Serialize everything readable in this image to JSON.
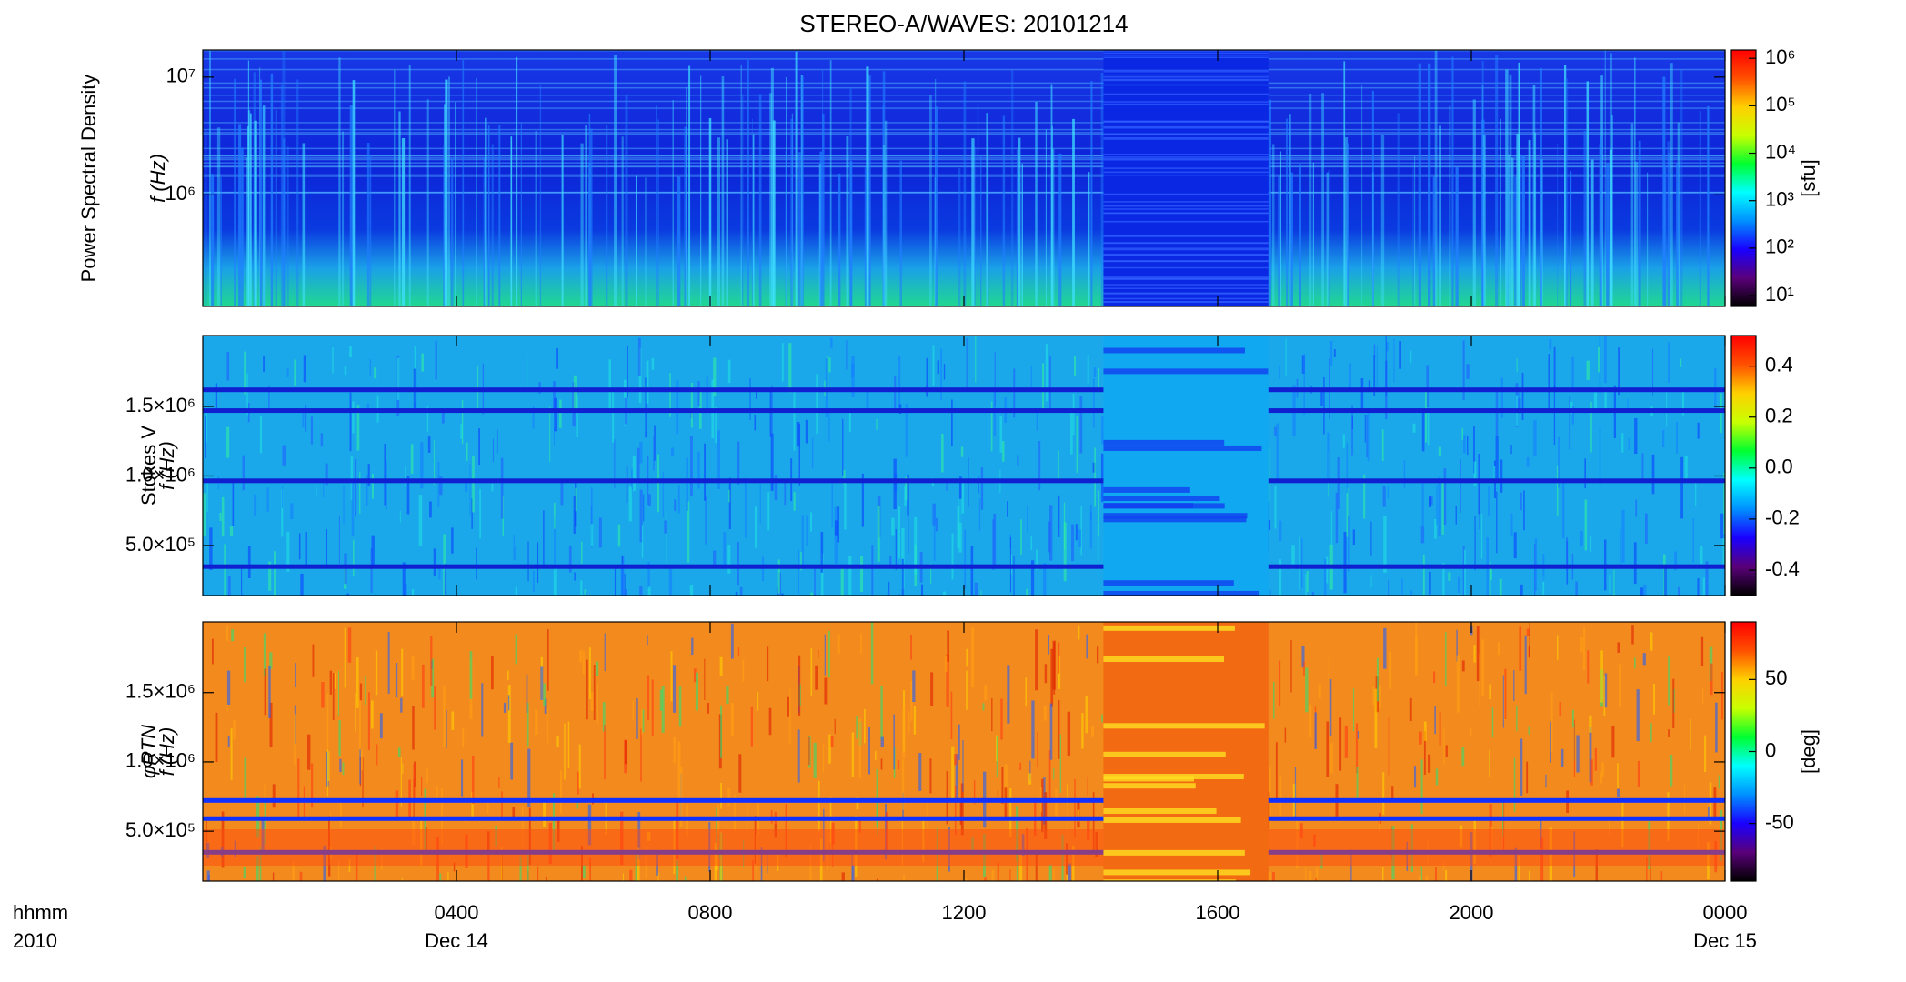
{
  "chart_data": [
    {
      "type": "spectrogram",
      "title": "STEREO-A/WAVES: 20101214",
      "ylabel": [
        "Power Spectral Density",
        "f (Hz)"
      ],
      "ylog": true,
      "ylim": [
        113000,
        17000000
      ],
      "yticks": [
        {
          "value": 1000000,
          "label": "10⁶"
        },
        {
          "value": 10000000,
          "label": "10⁷"
        }
      ],
      "xlim": [
        0,
        24
      ],
      "xticks": [
        4,
        8,
        12,
        16,
        20,
        24
      ],
      "gap": [
        14.2,
        16.8
      ],
      "clog": true,
      "clim": [
        5.9,
        1500000
      ],
      "cticks": [
        {
          "value": 10,
          "label": "10¹"
        },
        {
          "value": 100,
          "label": "10²"
        },
        {
          "value": 1000,
          "label": "10³"
        },
        {
          "value": 10000,
          "label": "10⁴"
        },
        {
          "value": 100000,
          "label": "10⁵"
        },
        {
          "value": 1000000,
          "label": "10⁶"
        }
      ],
      "cunit": "[sfu]",
      "colormap": [
        "#000000",
        "#5a007a",
        "#1a00ff",
        "#0090ff",
        "#00ffff",
        "#00ff30",
        "#c8ff00",
        "#ffd000",
        "#ff5000",
        "#ff0000"
      ]
    },
    {
      "type": "spectrogram",
      "ylabel": [
        "Stokes V",
        "f (Hz)"
      ],
      "ylog": false,
      "ylim": [
        140000,
        2010000
      ],
      "yticks": [
        {
          "value": 500000,
          "label": "5.0×10⁵"
        },
        {
          "value": 1000000,
          "label": "1.0×10⁶"
        },
        {
          "value": 1500000,
          "label": "1.5×10⁶"
        }
      ],
      "xlim": [
        0,
        24
      ],
      "xticks": [
        4,
        8,
        12,
        16,
        20,
        24
      ],
      "gap": [
        14.2,
        16.8
      ],
      "clog": false,
      "clim": [
        -0.5,
        0.52
      ],
      "cticks": [
        -0.4,
        -0.2,
        {
          "value": 0,
          "label": "0.0"
        },
        0.2,
        0.4
      ],
      "colormap": [
        "#000000",
        "#5a007a",
        "#1a00ff",
        "#0090ff",
        "#00ffff",
        "#00ff30",
        "#c8ff00",
        "#ffd000",
        "#ff5000",
        "#ff0000"
      ]
    },
    {
      "type": "spectrogram",
      "ylabel": [
        "φRTN",
        "f (Hz)"
      ],
      "ylog": false,
      "ylim": [
        140000,
        2010000
      ],
      "yticks": [
        {
          "value": 500000,
          "label": "5.0×10⁵"
        },
        {
          "value": 1000000,
          "label": "1.0×10⁶"
        },
        {
          "value": 1500000,
          "label": "1.5×10⁶"
        }
      ],
      "xlim": [
        0,
        24
      ],
      "xticks": [
        {
          "value": 4,
          "label": "0400"
        },
        {
          "value": 8,
          "label": "0800"
        },
        {
          "value": 12,
          "label": "1200"
        },
        {
          "value": 16,
          "label": "1600"
        },
        {
          "value": 20,
          "label": "2000"
        },
        {
          "value": 24,
          "label": "0000"
        }
      ],
      "xdates": [
        {
          "value": 4,
          "label": "Dec 14"
        },
        {
          "value": 24,
          "label": "Dec 15"
        }
      ],
      "xlabel": [
        "hhmm",
        "2010"
      ],
      "gap": [
        14.2,
        16.8
      ],
      "clog": false,
      "clim": [
        -90,
        90
      ],
      "cticks": [
        -50,
        0,
        50
      ],
      "cunit": "[deg]",
      "colormap": [
        "#000000",
        "#5a007a",
        "#1a00ff",
        "#0090ff",
        "#00ffff",
        "#00ff30",
        "#c8ff00",
        "#ffd000",
        "#ff5000",
        "#ff0000"
      ]
    }
  ]
}
